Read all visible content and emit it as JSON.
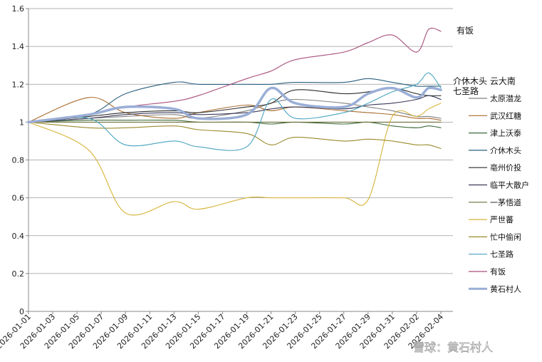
{
  "chart_data": {
    "type": "line",
    "ylim": [
      0,
      1.6
    ],
    "yticks": [
      "0",
      "0.2",
      "0.4",
      "0.6",
      "0.8",
      "1",
      "1.2",
      "1.4",
      "1.6"
    ],
    "xticks": [
      "2026-01-01",
      "2026-01-03",
      "2026-01-05",
      "2026-01-07",
      "2026-01-09",
      "2026-01-11",
      "2026-01-13",
      "2026-01-15",
      "2026-01-17",
      "2026-01-19",
      "2026-01-21",
      "2026-01-23",
      "2026-01-25",
      "2026-01-27",
      "2026-01-29",
      "2026-01-31",
      "2026-02-02",
      "2026-02-04"
    ],
    "grid": "horizontal",
    "legend_position": "right",
    "annotations": [
      "有饭",
      "介休木头 云大南",
      "七圣路"
    ],
    "watermark": "雪球：黄石村人",
    "x": [
      "2026-01-01",
      "2026-01-06",
      "2026-01-09",
      "2026-01-13",
      "2026-01-15",
      "2026-01-19",
      "2026-01-21",
      "2026-01-23",
      "2026-01-27",
      "2026-01-29",
      "2026-01-31",
      "2026-02-02",
      "2026-02-03",
      "2026-02-04"
    ],
    "series": [
      {
        "name": "太原潜龙",
        "color": "#7f7f7f",
        "values": [
          1,
          1.02,
          1.03,
          1.04,
          1.02,
          1.06,
          1.1,
          1.12,
          1.1,
          1.08,
          1.06,
          1.03,
          1.03,
          1.02
        ]
      },
      {
        "name": "武汉红糖",
        "color": "#a86b2c",
        "values": [
          1,
          1.13,
          1.05,
          1.02,
          1.05,
          1.09,
          1.06,
          1.08,
          1.06,
          1.05,
          1.04,
          1.02,
          1.02,
          1.01
        ]
      },
      {
        "name": "津上沃泰",
        "color": "#3d6b3a",
        "values": [
          1,
          1.01,
          1.01,
          1.01,
          1.0,
          1.0,
          0.99,
          1.0,
          0.99,
          1.0,
          0.98,
          0.97,
          0.98,
          0.97
        ]
      },
      {
        "name": "介休木头",
        "color": "#2a5f7e",
        "values": [
          1,
          1.04,
          1.15,
          1.21,
          1.2,
          1.2,
          1.2,
          1.21,
          1.21,
          1.23,
          1.21,
          1.19,
          1.19,
          1.19
        ]
      },
      {
        "name": "亳州价投",
        "color": "#2b2b2b",
        "values": [
          1,
          1.03,
          1.05,
          1.06,
          1.05,
          1.08,
          1.1,
          1.17,
          1.15,
          1.16,
          1.18,
          1.15,
          1.14,
          1.14
        ]
      },
      {
        "name": "临平大散户",
        "color": "#3a3a5a",
        "values": [
          1,
          1.02,
          1.04,
          1.05,
          1.04,
          1.05,
          1.07,
          1.08,
          1.07,
          1.09,
          1.1,
          1.12,
          1.14,
          1.12
        ]
      },
      {
        "name": "一茅悟道",
        "color": "#6e6e3a",
        "values": [
          1,
          1.0,
          1.0,
          1.0,
          1.0,
          1.0,
          1.0,
          1.0,
          1.0,
          1.0,
          1.0,
          1.0,
          1.0,
          1.0
        ]
      },
      {
        "name": "严世蕃",
        "color": "#d6b338",
        "values": [
          1,
          0.85,
          0.52,
          0.58,
          0.54,
          0.6,
          0.6,
          0.6,
          0.6,
          0.59,
          1.03,
          1.03,
          1.07,
          1.1
        ]
      },
      {
        "name": "忙中偷闲",
        "color": "#9a8a2a",
        "values": [
          1,
          0.97,
          0.97,
          0.98,
          0.96,
          0.94,
          0.88,
          0.92,
          0.9,
          0.91,
          0.9,
          0.88,
          0.88,
          0.86
        ]
      },
      {
        "name": "七圣路",
        "color": "#4aa3c0",
        "values": [
          1,
          1.02,
          0.88,
          0.9,
          0.87,
          0.87,
          1.12,
          1.02,
          1.05,
          1.1,
          1.16,
          1.2,
          1.26,
          1.18
        ]
      },
      {
        "name": "有饭",
        "color": "#a84f7a",
        "values": [
          1,
          1.04,
          1.08,
          1.11,
          1.14,
          1.23,
          1.27,
          1.33,
          1.37,
          1.42,
          1.46,
          1.37,
          1.49,
          1.48
        ]
      },
      {
        "name": "黄石村人",
        "color": "#9aaed6",
        "values": [
          1,
          1.04,
          1.08,
          1.07,
          1.02,
          1.04,
          1.18,
          1.1,
          1.08,
          1.15,
          1.18,
          1.13,
          1.18,
          1.17
        ],
        "bold": true
      }
    ]
  }
}
